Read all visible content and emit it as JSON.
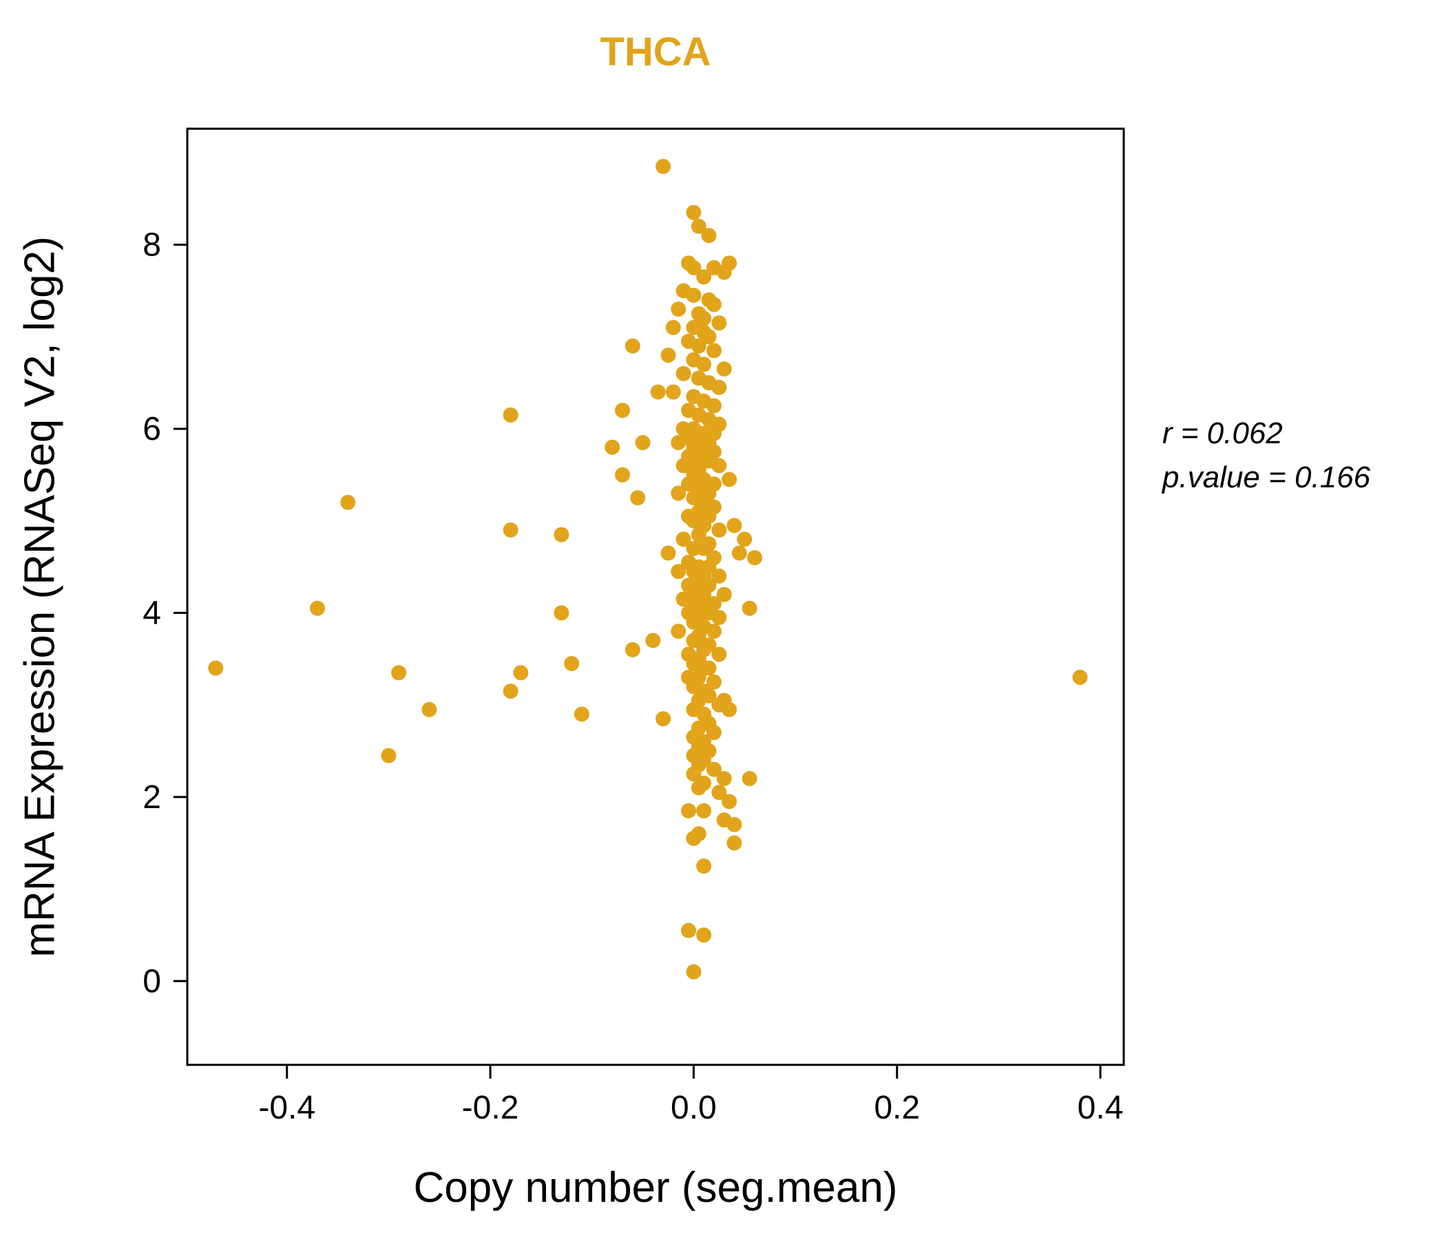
{
  "title": "THCA",
  "annotation": {
    "line1": "r = 0.062",
    "line2": "p.value = 0.166"
  },
  "chart_data": {
    "type": "scatter",
    "title": "THCA",
    "xlabel": "Copy number (seg.mean)",
    "ylabel": "mRNA Expression (RNASeq V2, log2)",
    "xlim": [
      -0.498,
      0.423
    ],
    "ylim": [
      -0.91,
      9.26
    ],
    "xticks": [
      -0.4,
      -0.2,
      0.0,
      0.2,
      0.4
    ],
    "xtick_labels": [
      "-0.4",
      "-0.2",
      "0.0",
      "0.2",
      "0.4"
    ],
    "yticks": [
      0,
      2,
      4,
      6,
      8
    ],
    "ytick_labels": [
      "0",
      "2",
      "4",
      "6",
      "8"
    ],
    "grid": false,
    "legend": "none",
    "point_color": "#E1A41B",
    "title_color": "#E1A41B",
    "points": [
      [
        -0.03,
        8.85
      ],
      [
        0.0,
        8.35
      ],
      [
        0.005,
        8.2
      ],
      [
        0.015,
        8.1
      ],
      [
        -0.005,
        7.8
      ],
      [
        0.0,
        7.75
      ],
      [
        0.02,
        7.75
      ],
      [
        0.035,
        7.8
      ],
      [
        0.03,
        7.7
      ],
      [
        0.01,
        7.65
      ],
      [
        -0.01,
        7.5
      ],
      [
        0.0,
        7.45
      ],
      [
        0.015,
        7.4
      ],
      [
        0.02,
        7.35
      ],
      [
        -0.015,
        7.3
      ],
      [
        0.005,
        7.25
      ],
      [
        0.01,
        7.2
      ],
      [
        0.025,
        7.15
      ],
      [
        -0.02,
        7.1
      ],
      [
        0.0,
        7.1
      ],
      [
        0.01,
        7.05
      ],
      [
        0.015,
        7.0
      ],
      [
        -0.005,
        6.95
      ],
      [
        -0.06,
        6.9
      ],
      [
        0.005,
        6.9
      ],
      [
        0.02,
        6.85
      ],
      [
        -0.025,
        6.8
      ],
      [
        0.0,
        6.75
      ],
      [
        0.01,
        6.7
      ],
      [
        0.03,
        6.65
      ],
      [
        -0.01,
        6.6
      ],
      [
        0.005,
        6.55
      ],
      [
        0.015,
        6.5
      ],
      [
        0.025,
        6.45
      ],
      [
        -0.02,
        6.4
      ],
      [
        -0.035,
        6.4
      ],
      [
        0.0,
        6.35
      ],
      [
        0.01,
        6.3
      ],
      [
        0.02,
        6.25
      ],
      [
        -0.005,
        6.2
      ],
      [
        -0.07,
        6.2
      ],
      [
        0.005,
        6.15
      ],
      [
        -0.18,
        6.15
      ],
      [
        0.015,
        6.1
      ],
      [
        0.025,
        6.05
      ],
      [
        -0.01,
        6.0
      ],
      [
        0.0,
        6.0
      ],
      [
        0.01,
        5.95
      ],
      [
        0.02,
        5.95
      ],
      [
        -0.005,
        5.9
      ],
      [
        0.005,
        5.9
      ],
      [
        0.015,
        5.85
      ],
      [
        -0.015,
        5.85
      ],
      [
        -0.05,
        5.85
      ],
      [
        0.0,
        5.8
      ],
      [
        0.01,
        5.8
      ],
      [
        -0.08,
        5.8
      ],
      [
        0.02,
        5.75
      ],
      [
        0.005,
        5.75
      ],
      [
        -0.005,
        5.7
      ],
      [
        0.01,
        5.7
      ],
      [
        0.0,
        5.65
      ],
      [
        0.015,
        5.65
      ],
      [
        -0.01,
        5.6
      ],
      [
        0.025,
        5.6
      ],
      [
        0.005,
        5.55
      ],
      [
        -0.07,
        5.5
      ],
      [
        0.0,
        5.5
      ],
      [
        0.01,
        5.45
      ],
      [
        0.035,
        5.45
      ],
      [
        0.02,
        5.4
      ],
      [
        -0.005,
        5.4
      ],
      [
        0.005,
        5.35
      ],
      [
        0.015,
        5.3
      ],
      [
        -0.015,
        5.3
      ],
      [
        0.0,
        5.25
      ],
      [
        -0.055,
        5.25
      ],
      [
        0.01,
        5.2
      ],
      [
        -0.34,
        5.2
      ],
      [
        0.02,
        5.15
      ],
      [
        0.005,
        5.1
      ],
      [
        -0.005,
        5.05
      ],
      [
        0.015,
        5.05
      ],
      [
        0.0,
        5.0
      ],
      [
        0.01,
        4.95
      ],
      [
        0.04,
        4.95
      ],
      [
        0.025,
        4.9
      ],
      [
        -0.18,
        4.9
      ],
      [
        -0.13,
        4.85
      ],
      [
        0.005,
        4.85
      ],
      [
        -0.01,
        4.8
      ],
      [
        0.05,
        4.8
      ],
      [
        0.015,
        4.75
      ],
      [
        0.0,
        4.7
      ],
      [
        0.01,
        4.7
      ],
      [
        0.045,
        4.65
      ],
      [
        -0.025,
        4.65
      ],
      [
        0.06,
        4.6
      ],
      [
        0.02,
        4.6
      ],
      [
        -0.005,
        4.55
      ],
      [
        0.005,
        4.5
      ],
      [
        0.015,
        4.5
      ],
      [
        -0.015,
        4.45
      ],
      [
        0.0,
        4.45
      ],
      [
        0.01,
        4.4
      ],
      [
        0.025,
        4.4
      ],
      [
        0.005,
        4.35
      ],
      [
        -0.005,
        4.3
      ],
      [
        0.015,
        4.3
      ],
      [
        0.0,
        4.25
      ],
      [
        0.01,
        4.2
      ],
      [
        0.03,
        4.2
      ],
      [
        -0.01,
        4.15
      ],
      [
        0.005,
        4.15
      ],
      [
        0.02,
        4.1
      ],
      [
        0.0,
        4.1
      ],
      [
        0.01,
        4.05
      ],
      [
        -0.37,
        4.05
      ],
      [
        0.055,
        4.05
      ],
      [
        -0.005,
        4.0
      ],
      [
        -0.13,
        4.0
      ],
      [
        0.015,
        4.0
      ],
      [
        0.005,
        3.95
      ],
      [
        0.025,
        3.95
      ],
      [
        0.0,
        3.9
      ],
      [
        0.01,
        3.85
      ],
      [
        -0.015,
        3.8
      ],
      [
        0.02,
        3.8
      ],
      [
        0.005,
        3.75
      ],
      [
        -0.04,
        3.7
      ],
      [
        0.0,
        3.7
      ],
      [
        0.015,
        3.65
      ],
      [
        0.01,
        3.6
      ],
      [
        -0.06,
        3.6
      ],
      [
        -0.005,
        3.55
      ],
      [
        0.025,
        3.55
      ],
      [
        0.005,
        3.5
      ],
      [
        0.0,
        3.45
      ],
      [
        -0.12,
        3.45
      ],
      [
        0.015,
        3.4
      ],
      [
        -0.47,
        3.4
      ],
      [
        0.01,
        3.4
      ],
      [
        -0.29,
        3.35
      ],
      [
        -0.17,
        3.35
      ],
      [
        0.38,
        3.3
      ],
      [
        0.005,
        3.3
      ],
      [
        -0.005,
        3.3
      ],
      [
        0.02,
        3.25
      ],
      [
        0.0,
        3.2
      ],
      [
        -0.18,
        3.15
      ],
      [
        0.01,
        3.15
      ],
      [
        0.015,
        3.1
      ],
      [
        0.005,
        3.05
      ],
      [
        0.03,
        3.05
      ],
      [
        0.025,
        3.0
      ],
      [
        -0.26,
        2.95
      ],
      [
        0.0,
        2.95
      ],
      [
        0.035,
        2.95
      ],
      [
        -0.11,
        2.9
      ],
      [
        0.01,
        2.9
      ],
      [
        -0.03,
        2.85
      ],
      [
        0.015,
        2.8
      ],
      [
        0.005,
        2.75
      ],
      [
        0.02,
        2.7
      ],
      [
        0.0,
        2.65
      ],
      [
        0.01,
        2.6
      ],
      [
        0.005,
        2.55
      ],
      [
        0.015,
        2.5
      ],
      [
        -0.3,
        2.45
      ],
      [
        0.0,
        2.45
      ],
      [
        0.01,
        2.4
      ],
      [
        0.005,
        2.35
      ],
      [
        0.02,
        2.3
      ],
      [
        0.0,
        2.25
      ],
      [
        0.03,
        2.2
      ],
      [
        0.055,
        2.2
      ],
      [
        0.01,
        2.15
      ],
      [
        0.005,
        2.1
      ],
      [
        0.025,
        2.05
      ],
      [
        0.035,
        1.95
      ],
      [
        -0.005,
        1.85
      ],
      [
        0.01,
        1.85
      ],
      [
        0.03,
        1.75
      ],
      [
        0.04,
        1.7
      ],
      [
        0.005,
        1.6
      ],
      [
        0.0,
        1.55
      ],
      [
        0.04,
        1.5
      ],
      [
        0.01,
        1.25
      ],
      [
        -0.005,
        0.55
      ],
      [
        0.01,
        0.5
      ],
      [
        0.0,
        0.1
      ]
    ]
  }
}
